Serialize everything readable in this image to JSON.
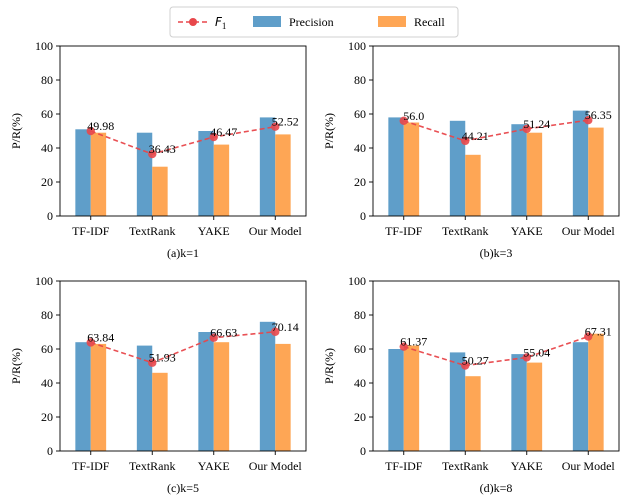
{
  "legend": {
    "f1_label": "F",
    "f1_sub": "1",
    "precision_label": "Precision",
    "recall_label": "Recall"
  },
  "colors": {
    "precision": "#5f9ec9",
    "recall": "#fea655",
    "f1": "#e8474b"
  },
  "chart_data": [
    {
      "type": "bar",
      "xlabel": "(a)k=1",
      "ylabel": "P/R(%)",
      "ylim": [
        0,
        100
      ],
      "yticks": [
        0,
        20,
        40,
        60,
        80,
        100
      ],
      "categories": [
        "TF-IDF",
        "TextRank",
        "YAKE",
        "Our Model"
      ],
      "series": [
        {
          "name": "Precision",
          "kind": "bar",
          "values": [
            51,
            49,
            50,
            58
          ]
        },
        {
          "name": "Recall",
          "kind": "bar",
          "values": [
            49,
            29,
            42,
            48
          ]
        },
        {
          "name": "F1",
          "kind": "line",
          "values": [
            49.98,
            36.43,
            46.47,
            52.52
          ],
          "labels": [
            "49.98",
            "36.43",
            "46.47",
            "52.52"
          ]
        }
      ]
    },
    {
      "type": "bar",
      "xlabel": "(b)k=3",
      "ylabel": "P/R(%)",
      "ylim": [
        0,
        100
      ],
      "yticks": [
        0,
        20,
        40,
        60,
        80,
        100
      ],
      "categories": [
        "TF-IDF",
        "TextRank",
        "YAKE",
        "Our Model"
      ],
      "series": [
        {
          "name": "Precision",
          "kind": "bar",
          "values": [
            58,
            56,
            54,
            62
          ]
        },
        {
          "name": "Recall",
          "kind": "bar",
          "values": [
            55,
            36,
            49,
            52
          ]
        },
        {
          "name": "F1",
          "kind": "line",
          "values": [
            56.0,
            44.21,
            51.24,
            56.35
          ],
          "labels": [
            "56.0",
            "44.21",
            "51.24",
            "56.35"
          ]
        }
      ]
    },
    {
      "type": "bar",
      "xlabel": "(c)k=5",
      "ylabel": "P/R(%)",
      "ylim": [
        0,
        100
      ],
      "yticks": [
        0,
        20,
        40,
        60,
        80,
        100
      ],
      "categories": [
        "TF-IDF",
        "TextRank",
        "YAKE",
        "Our Model"
      ],
      "series": [
        {
          "name": "Precision",
          "kind": "bar",
          "values": [
            64,
            62,
            70,
            76
          ]
        },
        {
          "name": "Recall",
          "kind": "bar",
          "values": [
            63,
            46,
            64,
            63
          ]
        },
        {
          "name": "F1",
          "kind": "line",
          "values": [
            63.84,
            51.93,
            66.63,
            70.14
          ],
          "labels": [
            "63.84",
            "51.93",
            "66.63",
            "70.14"
          ]
        }
      ]
    },
    {
      "type": "bar",
      "xlabel": "(d)k=8",
      "ylabel": "P/R(%)",
      "ylim": [
        0,
        100
      ],
      "yticks": [
        0,
        20,
        40,
        60,
        80,
        100
      ],
      "categories": [
        "TF-IDF",
        "TextRank",
        "YAKE",
        "Our Model"
      ],
      "series": [
        {
          "name": "Precision",
          "kind": "bar",
          "values": [
            60,
            58,
            57,
            64
          ]
        },
        {
          "name": "Recall",
          "kind": "bar",
          "values": [
            62,
            44,
            52,
            69
          ]
        },
        {
          "name": "F1",
          "kind": "line",
          "values": [
            61.37,
            50.27,
            55.04,
            67.31
          ],
          "labels": [
            "61.37",
            "50.27",
            "55.04",
            "67.31"
          ]
        }
      ]
    }
  ]
}
